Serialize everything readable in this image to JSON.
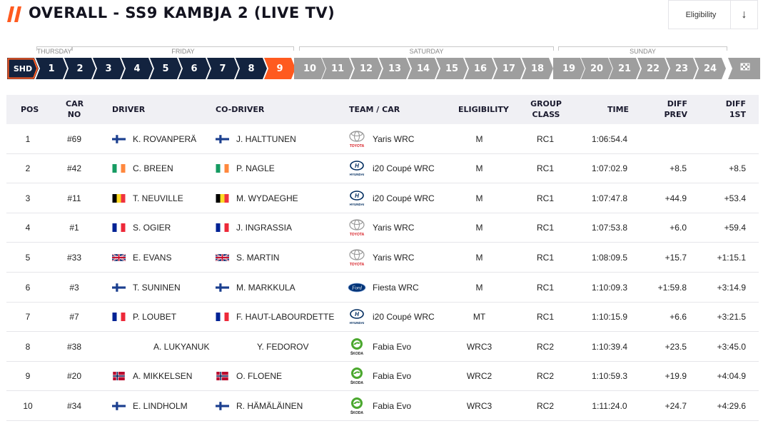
{
  "header": {
    "title": "OVERALL - SS9 KAMBJA 2 (LIVE TV)",
    "eligibility_label": "Eligibility",
    "accent_color": "#ff5a1f"
  },
  "days": [
    "THURSDAY",
    "FRIDAY",
    "SATURDAY",
    "SUNDAY"
  ],
  "stages": [
    {
      "label": "SHD",
      "state": "selected-first"
    },
    {
      "label": "1",
      "state": "done"
    },
    {
      "label": "2",
      "state": "done"
    },
    {
      "label": "3",
      "state": "done"
    },
    {
      "label": "4",
      "state": "done"
    },
    {
      "label": "5",
      "state": "done"
    },
    {
      "label": "6",
      "state": "done"
    },
    {
      "label": "7",
      "state": "done"
    },
    {
      "label": "8",
      "state": "done"
    },
    {
      "label": "9",
      "state": "current"
    },
    {
      "label": "10",
      "state": "future"
    },
    {
      "label": "11",
      "state": "future"
    },
    {
      "label": "12",
      "state": "future"
    },
    {
      "label": "13",
      "state": "future"
    },
    {
      "label": "14",
      "state": "future"
    },
    {
      "label": "15",
      "state": "future"
    },
    {
      "label": "16",
      "state": "future"
    },
    {
      "label": "17",
      "state": "future"
    },
    {
      "label": "18",
      "state": "future"
    },
    {
      "label": "19",
      "state": "future"
    },
    {
      "label": "20",
      "state": "future"
    },
    {
      "label": "21",
      "state": "future"
    },
    {
      "label": "22",
      "state": "future"
    },
    {
      "label": "23",
      "state": "future"
    },
    {
      "label": "24",
      "state": "future"
    },
    {
      "label": "finish-flag-icon",
      "state": "finish"
    }
  ],
  "columns": {
    "pos": "POS",
    "car_no_1": "CAR",
    "car_no_2": "NO",
    "driver": "DRIVER",
    "co_driver": "CO-DRIVER",
    "team_car": "TEAM / CAR",
    "eligibility": "ELIGIBILITY",
    "group_1": "GROUP",
    "group_2": "CLASS",
    "time": "TIME",
    "diff_prev_1": "DIFF",
    "diff_prev_2": "PREV",
    "diff_1st_1": "DIFF",
    "diff_1st_2": "1ST"
  },
  "brands": {
    "toyota": "TOYOTA",
    "hyundai": "HYUNDAI",
    "ford": "Ford",
    "skoda": "ŠKODA"
  },
  "rows": [
    {
      "pos": "1",
      "car": "#69",
      "driver": "K. ROVANPERÄ",
      "driver_flag": "fin",
      "codriver": "J. HALTTUNEN",
      "codriver_flag": "fin",
      "brand": "toyota",
      "car_model": "Yaris WRC",
      "eligibility": "M",
      "group": "RC1",
      "time": "1:06:54.4",
      "diff_prev": "",
      "diff_1st": ""
    },
    {
      "pos": "2",
      "car": "#42",
      "driver": "C. BREEN",
      "driver_flag": "irl",
      "codriver": "P. NAGLE",
      "codriver_flag": "irl",
      "brand": "hyundai",
      "car_model": "i20 Coupé WRC",
      "eligibility": "M",
      "group": "RC1",
      "time": "1:07:02.9",
      "diff_prev": "+8.5",
      "diff_1st": "+8.5"
    },
    {
      "pos": "3",
      "car": "#11",
      "driver": "T. NEUVILLE",
      "driver_flag": "bel",
      "codriver": "M. WYDAEGHE",
      "codriver_flag": "bel",
      "brand": "hyundai",
      "car_model": "i20 Coupé WRC",
      "eligibility": "M",
      "group": "RC1",
      "time": "1:07:47.8",
      "diff_prev": "+44.9",
      "diff_1st": "+53.4"
    },
    {
      "pos": "4",
      "car": "#1",
      "driver": "S. OGIER",
      "driver_flag": "fra",
      "codriver": "J. INGRASSIA",
      "codriver_flag": "fra",
      "brand": "toyota",
      "car_model": "Yaris WRC",
      "eligibility": "M",
      "group": "RC1",
      "time": "1:07:53.8",
      "diff_prev": "+6.0",
      "diff_1st": "+59.4"
    },
    {
      "pos": "5",
      "car": "#33",
      "driver": "E. EVANS",
      "driver_flag": "gbr",
      "codriver": "S. MARTIN",
      "codriver_flag": "gbr",
      "brand": "toyota",
      "car_model": "Yaris WRC",
      "eligibility": "M",
      "group": "RC1",
      "time": "1:08:09.5",
      "diff_prev": "+15.7",
      "diff_1st": "+1:15.1"
    },
    {
      "pos": "6",
      "car": "#3",
      "driver": "T. SUNINEN",
      "driver_flag": "fin",
      "codriver": "M. MARKKULA",
      "codriver_flag": "fin",
      "brand": "ford",
      "car_model": "Fiesta WRC",
      "eligibility": "M",
      "group": "RC1",
      "time": "1:10:09.3",
      "diff_prev": "+1:59.8",
      "diff_1st": "+3:14.9"
    },
    {
      "pos": "7",
      "car": "#7",
      "driver": "P. LOUBET",
      "driver_flag": "fra",
      "codriver": "F. HAUT-LABOURDETTE",
      "codriver_flag": "fra",
      "brand": "hyundai",
      "car_model": "i20 Coupé WRC",
      "eligibility": "MT",
      "group": "RC1",
      "time": "1:10:15.9",
      "diff_prev": "+6.6",
      "diff_1st": "+3:21.5"
    },
    {
      "pos": "8",
      "car": "#38",
      "driver": "A. LUKYANUK",
      "driver_flag": "none",
      "codriver": "Y. FEDOROV",
      "codriver_flag": "none",
      "brand": "skoda",
      "car_model": "Fabia Evo",
      "eligibility": "WRC3",
      "group": "RC2",
      "time": "1:10:39.4",
      "diff_prev": "+23.5",
      "diff_1st": "+3:45.0"
    },
    {
      "pos": "9",
      "car": "#20",
      "driver": "A. MIKKELSEN",
      "driver_flag": "nor",
      "codriver": "O. FLOENE",
      "codriver_flag": "nor",
      "brand": "skoda",
      "car_model": "Fabia Evo",
      "eligibility": "WRC2",
      "group": "RC2",
      "time": "1:10:59.3",
      "diff_prev": "+19.9",
      "diff_1st": "+4:04.9"
    },
    {
      "pos": "10",
      "car": "#34",
      "driver": "E. LINDHOLM",
      "driver_flag": "fin",
      "codriver": "R. HÄMÄLÄINEN",
      "codriver_flag": "fin",
      "brand": "skoda",
      "car_model": "Fabia Evo",
      "eligibility": "WRC3",
      "group": "RC2",
      "time": "1:11:24.0",
      "diff_prev": "+24.7",
      "diff_1st": "+4:29.6"
    }
  ]
}
